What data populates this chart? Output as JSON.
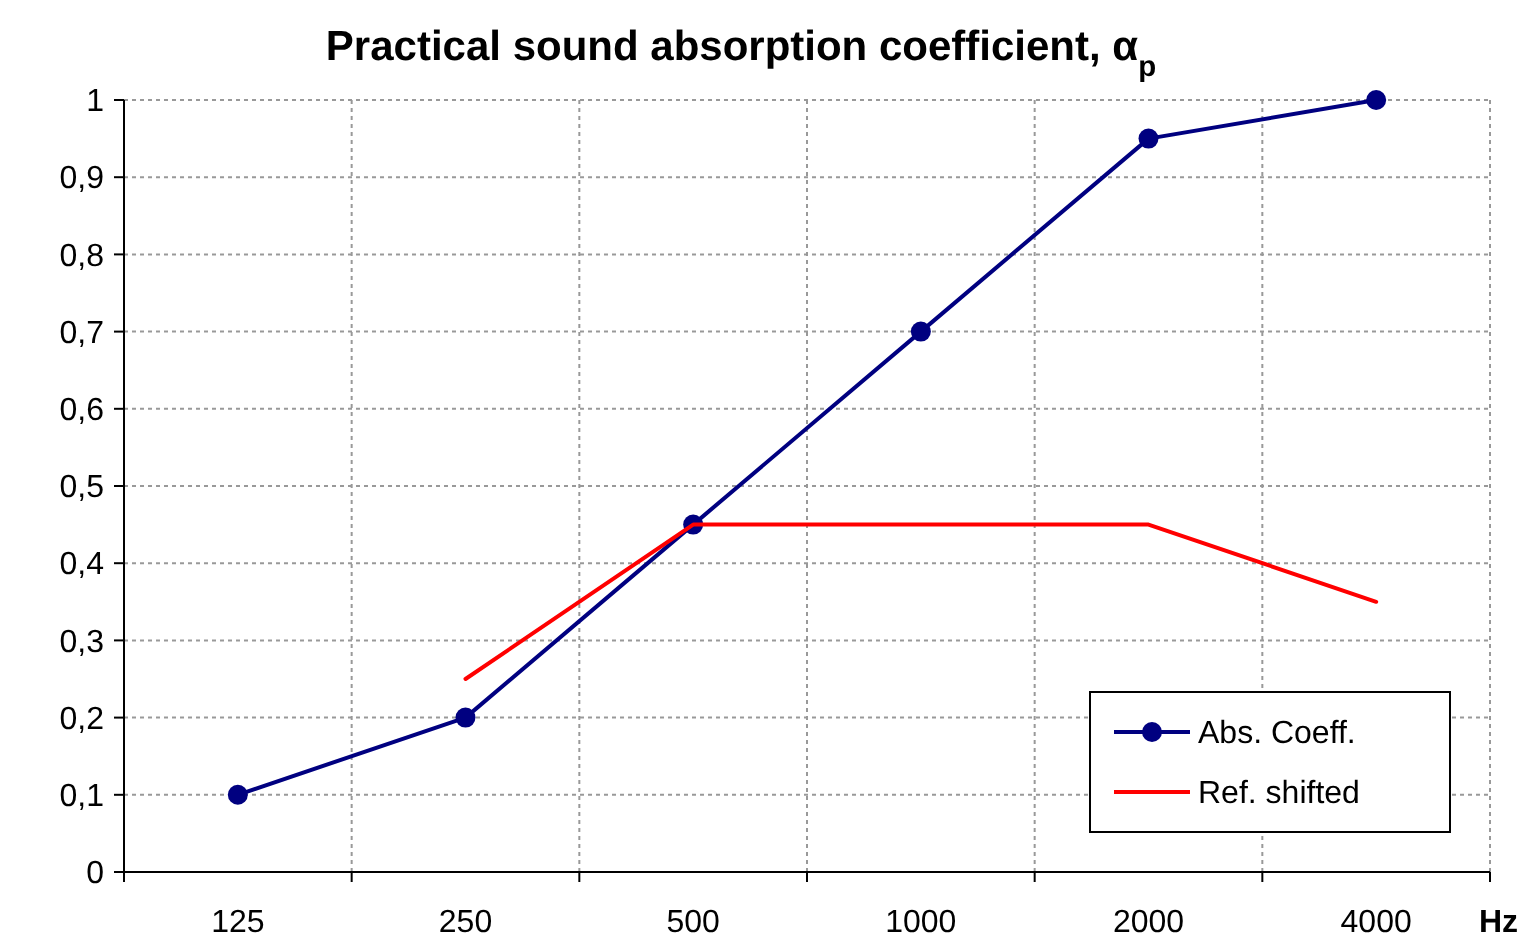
{
  "chart_data": {
    "type": "line",
    "title": "Practical sound absorption coefficient, α$_{p}$",
    "xlabel": "Hz",
    "categories": [
      "125",
      "250",
      "500",
      "1000",
      "2000",
      "4000"
    ],
    "series": [
      {
        "name": "Abs. Coeff.",
        "color": "#000080",
        "marker": "circle",
        "values": [
          0.1,
          0.2,
          0.45,
          0.7,
          0.95,
          1
        ]
      },
      {
        "name": "Ref. shifted",
        "color": "#ff0000",
        "marker": "none",
        "values": [
          null,
          0.25,
          0.45,
          0.45,
          0.45,
          0.35
        ]
      }
    ],
    "ylim": [
      0,
      1
    ],
    "yticks": [
      0,
      {
        "value": 0.1,
        "label": "0,1"
      },
      {
        "value": 0.2,
        "label": "0,2"
      },
      {
        "value": 0.3,
        "label": "0,3"
      },
      {
        "value": 0.4,
        "label": "0,4"
      },
      {
        "value": 0.5,
        "label": "0,5"
      },
      {
        "value": 0.6,
        "label": "0,6"
      },
      {
        "value": 0.7,
        "label": "0,7"
      },
      {
        "value": 0.8,
        "label": "0,8"
      },
      {
        "value": 0.9,
        "label": "0,9"
      },
      1
    ],
    "grid": true,
    "legend": "bottom right",
    "line_style": "solid"
  }
}
